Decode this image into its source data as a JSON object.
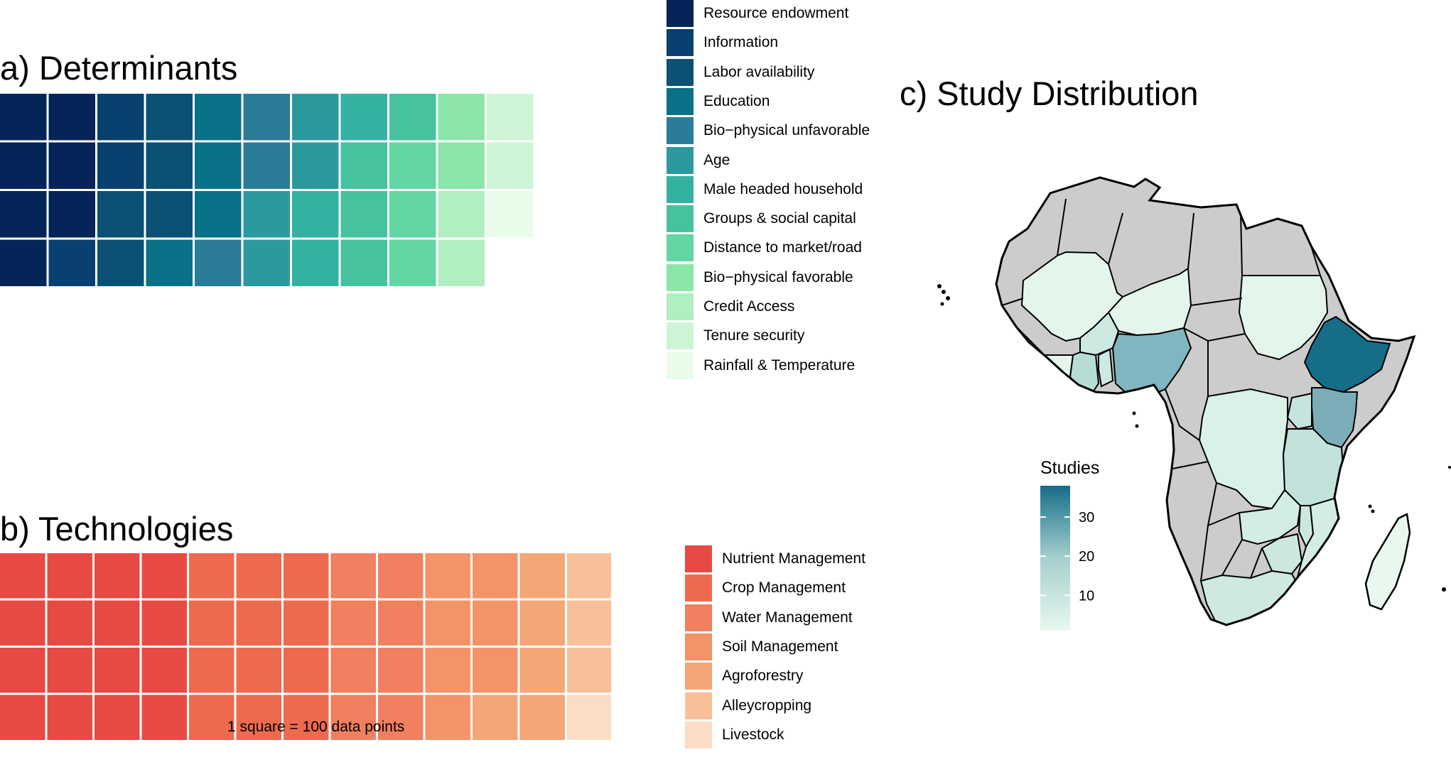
{
  "panels": {
    "determinants_title": "a) Determinants",
    "technologies_title": "b) Technologies",
    "map_title": "c) Study Distribution"
  },
  "chart_data": [
    {
      "type": "waffle",
      "title": "a) Determinants",
      "unit_note": "",
      "rows": 4,
      "fill_order": "column-major, top-to-bottom",
      "categories": [
        "Resource endowment",
        "Information",
        "Labor availability",
        "Education",
        "Bio-physical unfavorable",
        "Age",
        "Male headed household",
        "Groups & social capital",
        "Distance to market/road",
        "Bio-physical favorable",
        "Credit Access",
        "Tenure security",
        "Rainfall & Temperature"
      ],
      "legend_labels": [
        "Resource endowment",
        "Information",
        "Labor availability",
        "Education",
        "Bio−physical unfavorable",
        "Age",
        "Male headed household",
        "Groups & social capital",
        "Distance to market/road",
        "Bio−physical favorable",
        "Credit Access",
        "Tenure security",
        "Rainfall & Temperature"
      ],
      "values": [
        7,
        3,
        5,
        4,
        3,
        4,
        3,
        4,
        3,
        2,
        2,
        2,
        1
      ],
      "colors": [
        "#052457",
        "#08406f",
        "#0b5176",
        "#087187",
        "#2b7c98",
        "#2b9aa0",
        "#35b1a2",
        "#47c29e",
        "#62d6a3",
        "#8be6a9",
        "#b1efc1",
        "#cdf4d4",
        "#e9fbe9"
      ],
      "legend": "right"
    },
    {
      "type": "waffle",
      "title": "b) Technologies",
      "unit_note": "1 square = 100 data points",
      "rows": 4,
      "fill_order": "column-major, top-to-bottom",
      "categories": [
        "Nutrient Management",
        "Crop Management",
        "Water Management",
        "Soil Management",
        "Agroforestry",
        "Alleycropping",
        "Livestock"
      ],
      "values": [
        16,
        12,
        8,
        7,
        5,
        3,
        1
      ],
      "colors": [
        "#e74a44",
        "#ee6a4f",
        "#f0805f",
        "#f39367",
        "#f5a677",
        "#f7c09b",
        "#fbdcc5"
      ],
      "legend": "right"
    },
    {
      "type": "choropleth",
      "title": "c) Study Distribution",
      "legend_title": "Studies",
      "scale_ticks": [
        10,
        20,
        30
      ],
      "scale_range": [
        1,
        38
      ],
      "scale_colors": [
        "#e8f8ef",
        "#a5cfcf",
        "#156d87"
      ],
      "missing_color": "#cccccc",
      "regions": [
        {
          "name": "Ethiopia",
          "value": 38
        },
        {
          "name": "Nigeria",
          "value": 20
        },
        {
          "name": "Kenya",
          "value": 24
        },
        {
          "name": "Tanzania",
          "value": 10
        },
        {
          "name": "Ghana",
          "value": 10
        },
        {
          "name": "Uganda",
          "value": 8
        },
        {
          "name": "South Africa",
          "value": 7
        },
        {
          "name": "Malawi",
          "value": 6
        },
        {
          "name": "Zambia",
          "value": 5
        },
        {
          "name": "Zimbabwe",
          "value": 6
        },
        {
          "name": "Mozambique",
          "value": 5
        },
        {
          "name": "Burkina Faso",
          "value": 3
        },
        {
          "name": "Mali",
          "value": 2
        },
        {
          "name": "Niger",
          "value": 3
        },
        {
          "name": "Sudan",
          "value": 2
        },
        {
          "name": "DR Congo",
          "value": 4
        },
        {
          "name": "Benin",
          "value": 5
        },
        {
          "name": "Madagascar",
          "value": 3
        }
      ]
    }
  ]
}
